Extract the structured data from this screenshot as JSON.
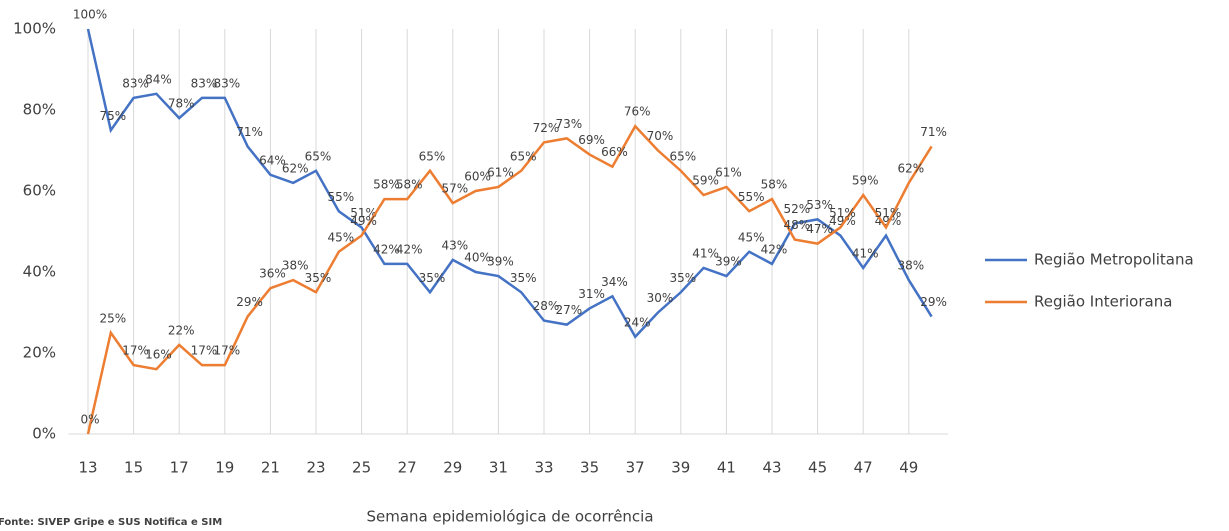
{
  "chart_data": {
    "type": "line",
    "x_label": "Semana epidemiológica  de ocorrência",
    "source": "Fonte: SIVEP Gripe  e SUS Notifica e SIM",
    "x": [
      13,
      14,
      15,
      16,
      17,
      18,
      19,
      20,
      21,
      22,
      23,
      24,
      25,
      26,
      27,
      28,
      29,
      30,
      31,
      32,
      33,
      34,
      35,
      36,
      37,
      38,
      39,
      40,
      41,
      42,
      43,
      44,
      45,
      46,
      47,
      48,
      49,
      50
    ],
    "series": [
      {
        "name": "Região Metropolitana",
        "color": "#4472c4",
        "values": [
          100,
          75,
          83,
          84,
          78,
          83,
          83,
          71,
          64,
          62,
          65,
          55,
          51,
          42,
          42,
          35,
          43,
          40,
          39,
          35,
          28,
          27,
          31,
          34,
          24,
          30,
          35,
          41,
          39,
          45,
          42,
          52,
          53,
          49,
          41,
          49,
          38,
          29
        ],
        "value_labels": [
          "100%",
          "75%",
          "83%",
          "84%",
          "78%",
          "83%",
          "83%",
          "71%",
          "64%",
          "62%",
          "65%",
          "55%",
          "51%",
          "42%",
          "42%",
          "35%",
          "43%",
          "40%",
          "39%",
          "35%",
          "28%",
          "27%",
          "31%",
          "34%",
          "24%",
          "30%",
          "35%",
          "41%",
          "39%",
          "45%",
          "42%",
          "52%",
          "53%",
          "49%",
          "41%",
          "49%",
          "38%",
          "29%"
        ]
      },
      {
        "name": "Região Interiorana",
        "color": "#ed7d31",
        "values": [
          0,
          25,
          17,
          16,
          22,
          17,
          17,
          29,
          36,
          38,
          35,
          45,
          49,
          58,
          58,
          65,
          57,
          60,
          61,
          65,
          72,
          73,
          69,
          66,
          76,
          70,
          65,
          59,
          61,
          55,
          58,
          48,
          47,
          51,
          59,
          51,
          62,
          71
        ],
        "value_labels": [
          "0%",
          "25%",
          "17%",
          "16%",
          "22%",
          "17%",
          "17%",
          "29%",
          "36%",
          "38%",
          "35%",
          "45%",
          "49%",
          "58%",
          "58%",
          "65%",
          "57%",
          "60%",
          "61%",
          "65%",
          "72%",
          "73%",
          "69%",
          "66%",
          "76%",
          "70%",
          "65%",
          "59%",
          "61%",
          "55%",
          "58%",
          "48%",
          "47%",
          "51%",
          "59%",
          "51%",
          "62%",
          "71%"
        ]
      }
    ],
    "xlim": [
      12.5,
      50.5
    ],
    "xticks": [
      13,
      15,
      17,
      19,
      21,
      23,
      25,
      27,
      29,
      31,
      33,
      35,
      37,
      39,
      41,
      43,
      45,
      47,
      49
    ],
    "ylim": [
      0,
      100
    ],
    "yticks": [
      {
        "value": 0,
        "label": "0%"
      },
      {
        "value": 20,
        "label": "20%"
      },
      {
        "value": 40,
        "label": "40%"
      },
      {
        "value": 60,
        "label": "60%"
      },
      {
        "value": 80,
        "label": "80%"
      },
      {
        "value": 100,
        "label": "100%"
      }
    ],
    "grid": true,
    "legend": "right"
  }
}
